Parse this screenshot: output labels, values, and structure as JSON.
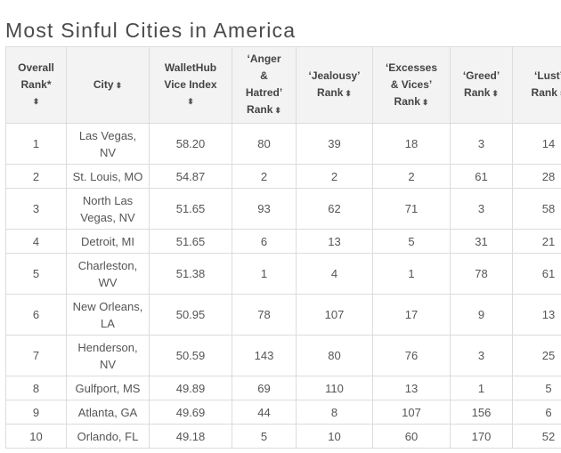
{
  "page": {
    "title": "Most Sinful Cities in America"
  },
  "table": {
    "headers": [
      {
        "lines": [
          "Overall",
          "Rank*"
        ],
        "sort": "⬍"
      },
      {
        "lines": [
          "City"
        ],
        "sort": "⬍"
      },
      {
        "lines": [
          "WalletHub",
          "Vice Index"
        ],
        "sort": "⬍"
      },
      {
        "lines": [
          "‘Anger",
          "&",
          "Hatred’",
          "Rank"
        ],
        "sort": "⬍"
      },
      {
        "lines": [
          "‘Jealousy’",
          "Rank"
        ],
        "sort": "⬍"
      },
      {
        "lines": [
          "‘Excesses",
          "& Vices’",
          "Rank"
        ],
        "sort": "⬍"
      },
      {
        "lines": [
          "‘Greed’",
          "Rank"
        ],
        "sort": "⬍"
      },
      {
        "lines": [
          "‘Lust’",
          "Rank"
        ],
        "sort": "⬍"
      }
    ],
    "rows": [
      {
        "rank": "1",
        "city": [
          "Las Vegas,",
          "NV"
        ],
        "index": "58.20",
        "anger": "80",
        "jealousy": "39",
        "excesses": "18",
        "greed": "3",
        "lust": "14"
      },
      {
        "rank": "2",
        "city": [
          "St. Louis, MO"
        ],
        "index": "54.87",
        "anger": "2",
        "jealousy": "2",
        "excesses": "2",
        "greed": "61",
        "lust": "28"
      },
      {
        "rank": "3",
        "city": [
          "North Las",
          "Vegas, NV"
        ],
        "index": "51.65",
        "anger": "93",
        "jealousy": "62",
        "excesses": "71",
        "greed": "3",
        "lust": "58"
      },
      {
        "rank": "4",
        "city": [
          "Detroit, MI"
        ],
        "index": "51.65",
        "anger": "6",
        "jealousy": "13",
        "excesses": "5",
        "greed": "31",
        "lust": "21"
      },
      {
        "rank": "5",
        "city": [
          "Charleston,",
          "WV"
        ],
        "index": "51.38",
        "anger": "1",
        "jealousy": "4",
        "excesses": "1",
        "greed": "78",
        "lust": "61"
      },
      {
        "rank": "6",
        "city": [
          "New Orleans,",
          "LA"
        ],
        "index": "50.95",
        "anger": "78",
        "jealousy": "107",
        "excesses": "17",
        "greed": "9",
        "lust": "13"
      },
      {
        "rank": "7",
        "city": [
          "Henderson,",
          "NV"
        ],
        "index": "50.59",
        "anger": "143",
        "jealousy": "80",
        "excesses": "76",
        "greed": "3",
        "lust": "25"
      },
      {
        "rank": "8",
        "city": [
          "Gulfport, MS"
        ],
        "index": "49.89",
        "anger": "69",
        "jealousy": "110",
        "excesses": "13",
        "greed": "1",
        "lust": "5"
      },
      {
        "rank": "9",
        "city": [
          "Atlanta, GA"
        ],
        "index": "49.69",
        "anger": "44",
        "jealousy": "8",
        "excesses": "107",
        "greed": "156",
        "lust": "6"
      },
      {
        "rank": "10",
        "city": [
          "Orlando, FL"
        ],
        "index": "49.18",
        "anger": "5",
        "jealousy": "10",
        "excesses": "60",
        "greed": "170",
        "lust": "52"
      }
    ]
  }
}
